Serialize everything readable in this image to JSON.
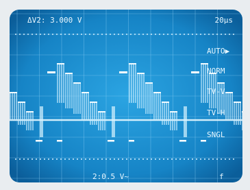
{
  "header": {
    "delta_v": "ΔV2: 3.000 V",
    "timebase": "20μs"
  },
  "menu": {
    "items": [
      "AUTO▶",
      "NORM",
      "TV-V",
      "TV-H",
      "SNGL"
    ]
  },
  "footer": {
    "channel": "2:0.5 V~",
    "mode": "f"
  }
}
